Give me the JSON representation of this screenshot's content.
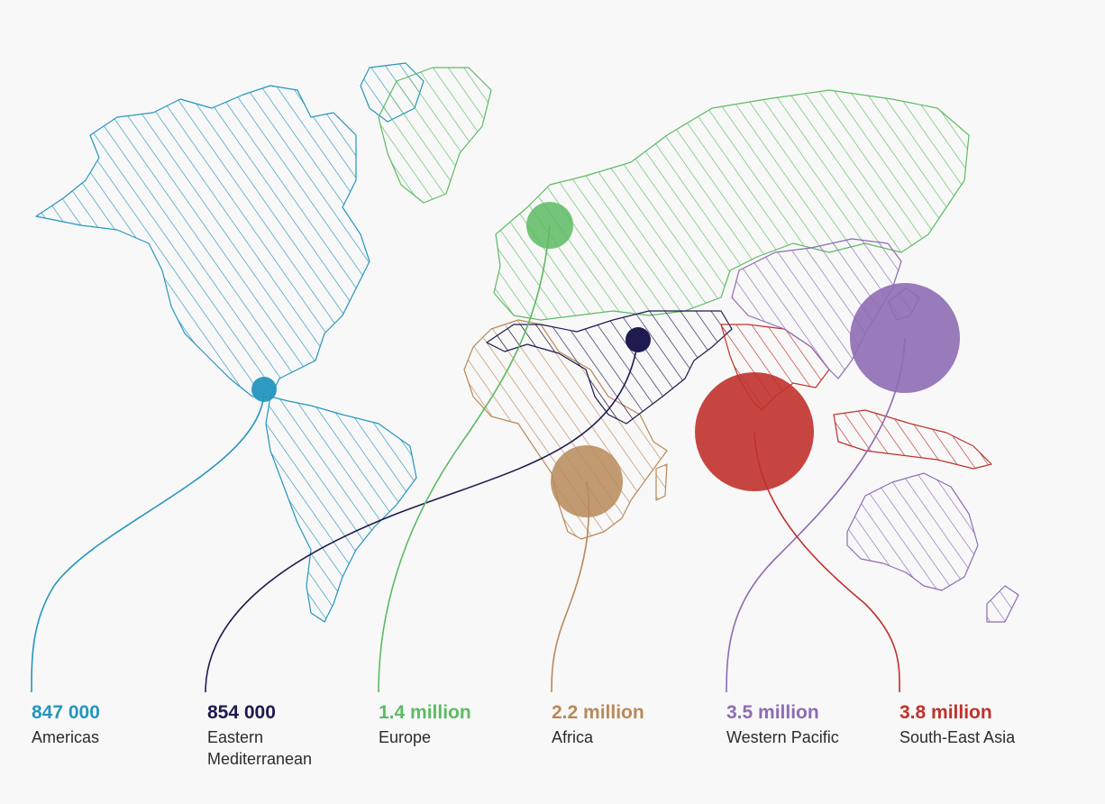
{
  "regions": [
    {
      "id": "americas",
      "value": "847 000",
      "name": "Americas",
      "color": "#2596be"
    },
    {
      "id": "emro",
      "value": "854 000",
      "name": "Eastern Mediterranean",
      "color": "#1f1a4f"
    },
    {
      "id": "europe",
      "value": "1.4 million",
      "name": "Europe",
      "color": "#5dbb63"
    },
    {
      "id": "africa",
      "value": "2.2 million",
      "name": "Africa",
      "color": "#b8895a"
    },
    {
      "id": "wpacific",
      "value": "3.5 million",
      "name": "Western Pacific",
      "color": "#8e6bb4"
    },
    {
      "id": "searo",
      "value": "3.8 million",
      "name": "South-East Asia",
      "color": "#c0312b"
    }
  ]
}
